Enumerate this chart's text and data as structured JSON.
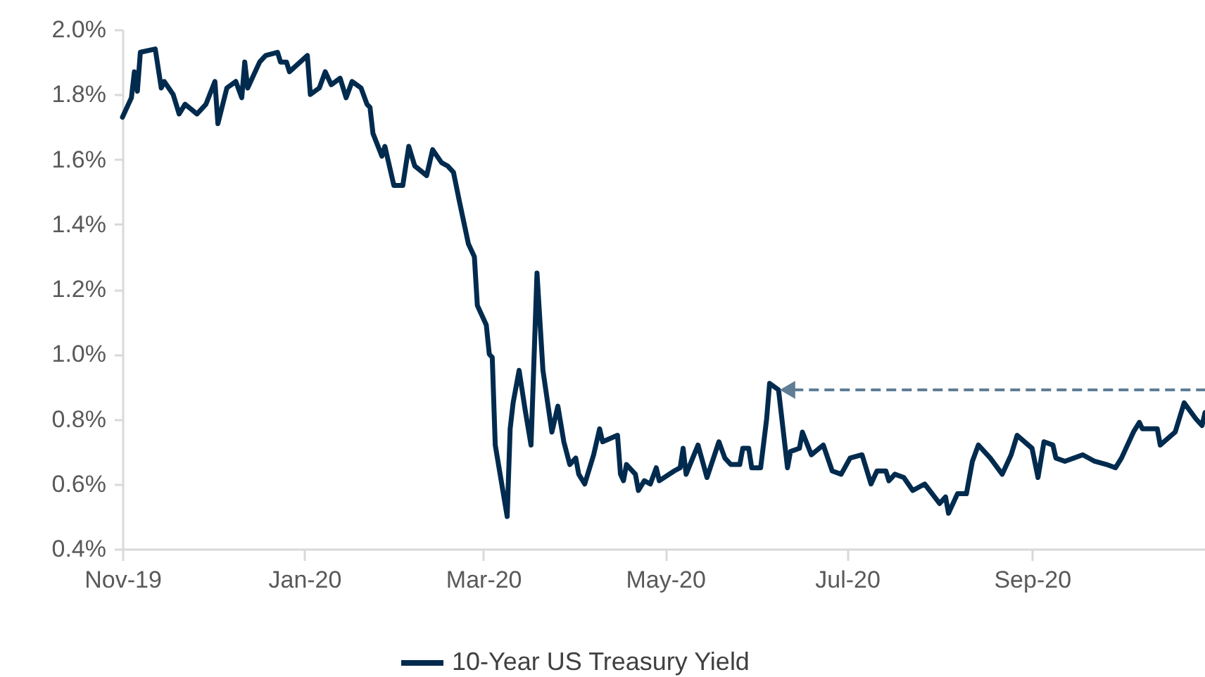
{
  "chart_data": {
    "type": "line",
    "x": [
      "2019-11-01",
      "2019-11-04",
      "2019-11-05",
      "2019-11-06",
      "2019-11-07",
      "2019-11-12",
      "2019-11-14",
      "2019-11-15",
      "2019-11-18",
      "2019-11-20",
      "2019-11-22",
      "2019-11-26",
      "2019-11-29",
      "2019-12-02",
      "2019-12-03",
      "2019-12-06",
      "2019-12-09",
      "2019-12-11",
      "2019-12-12",
      "2019-12-13",
      "2019-12-17",
      "2019-12-19",
      "2019-12-23",
      "2019-12-24",
      "2019-12-26",
      "2019-12-27",
      "2020-01-02",
      "2020-01-03",
      "2020-01-06",
      "2020-01-08",
      "2020-01-10",
      "2020-01-13",
      "2020-01-15",
      "2020-01-17",
      "2020-01-20",
      "2020-01-22",
      "2020-01-23",
      "2020-01-24",
      "2020-01-27",
      "2020-01-28",
      "2020-01-31",
      "2020-02-03",
      "2020-02-05",
      "2020-02-07",
      "2020-02-11",
      "2020-02-13",
      "2020-02-16",
      "2020-02-18",
      "2020-02-20",
      "2020-02-22",
      "2020-02-25",
      "2020-02-27",
      "2020-02-28",
      "2020-03-02",
      "2020-03-03",
      "2020-03-04",
      "2020-03-05",
      "2020-03-09",
      "2020-03-10",
      "2020-03-11",
      "2020-03-13",
      "2020-03-15",
      "2020-03-17",
      "2020-03-19",
      "2020-03-21",
      "2020-03-24",
      "2020-03-26",
      "2020-03-28",
      "2020-03-30",
      "2020-04-01",
      "2020-04-02",
      "2020-04-04",
      "2020-04-07",
      "2020-04-09",
      "2020-04-10",
      "2020-04-15",
      "2020-04-16",
      "2020-04-17",
      "2020-04-18",
      "2020-04-21",
      "2020-04-22",
      "2020-04-24",
      "2020-04-26",
      "2020-04-28",
      "2020-04-29",
      "2020-05-04",
      "2020-05-06",
      "2020-05-07",
      "2020-05-08",
      "2020-05-12",
      "2020-05-15",
      "2020-05-19",
      "2020-05-21",
      "2020-05-23",
      "2020-05-26",
      "2020-05-27",
      "2020-05-29",
      "2020-05-30",
      "2020-06-02",
      "2020-06-04",
      "2020-06-05",
      "2020-06-08",
      "2020-06-11",
      "2020-06-12",
      "2020-06-15",
      "2020-06-16",
      "2020-06-19",
      "2020-06-23",
      "2020-06-26",
      "2020-06-29",
      "2020-07-02",
      "2020-07-06",
      "2020-07-09",
      "2020-07-11",
      "2020-07-14",
      "2020-07-15",
      "2020-07-17",
      "2020-07-20",
      "2020-07-23",
      "2020-07-27",
      "2020-08-01",
      "2020-08-03",
      "2020-08-04",
      "2020-08-07",
      "2020-08-10",
      "2020-08-12",
      "2020-08-14",
      "2020-08-18",
      "2020-08-22",
      "2020-08-25",
      "2020-08-27",
      "2020-09-01",
      "2020-09-03",
      "2020-09-05",
      "2020-09-08",
      "2020-09-09",
      "2020-09-12",
      "2020-09-18",
      "2020-09-22",
      "2020-09-26",
      "2020-09-29",
      "2020-10-01",
      "2020-10-05",
      "2020-10-07",
      "2020-10-08",
      "2020-10-13",
      "2020-10-14",
      "2020-10-19",
      "2020-10-22",
      "2020-10-26",
      "2020-10-28",
      "2020-10-29"
    ],
    "series": [
      {
        "name": "10-Year US Treasury Yield",
        "color": "#002b4e",
        "values": [
          1.73,
          1.79,
          1.87,
          1.81,
          1.93,
          1.94,
          1.82,
          1.84,
          1.8,
          1.74,
          1.77,
          1.74,
          1.77,
          1.84,
          1.71,
          1.82,
          1.84,
          1.79,
          1.9,
          1.82,
          1.9,
          1.92,
          1.93,
          1.9,
          1.9,
          1.87,
          1.92,
          1.8,
          1.82,
          1.87,
          1.83,
          1.85,
          1.79,
          1.84,
          1.82,
          1.77,
          1.76,
          1.68,
          1.61,
          1.64,
          1.52,
          1.52,
          1.64,
          1.58,
          1.55,
          1.63,
          1.59,
          1.58,
          1.56,
          1.47,
          1.34,
          1.3,
          1.15,
          1.09,
          1.0,
          0.99,
          0.72,
          0.5,
          0.77,
          0.85,
          0.95,
          0.83,
          0.72,
          1.25,
          0.95,
          0.76,
          0.84,
          0.73,
          0.66,
          0.68,
          0.63,
          0.6,
          0.69,
          0.77,
          0.73,
          0.75,
          0.63,
          0.61,
          0.66,
          0.63,
          0.58,
          0.61,
          0.6,
          0.65,
          0.61,
          0.64,
          0.65,
          0.71,
          0.63,
          0.72,
          0.62,
          0.73,
          0.68,
          0.66,
          0.66,
          0.71,
          0.71,
          0.65,
          0.65,
          0.8,
          0.91,
          0.89,
          0.65,
          0.7,
          0.71,
          0.76,
          0.69,
          0.72,
          0.64,
          0.63,
          0.68,
          0.69,
          0.6,
          0.64,
          0.64,
          0.61,
          0.63,
          0.62,
          0.58,
          0.6,
          0.54,
          0.56,
          0.51,
          0.57,
          0.57,
          0.67,
          0.72,
          0.68,
          0.63,
          0.69,
          0.75,
          0.71,
          0.62,
          0.73,
          0.72,
          0.68,
          0.67,
          0.69,
          0.67,
          0.66,
          0.65,
          0.68,
          0.76,
          0.79,
          0.77,
          0.77,
          0.72,
          0.76,
          0.85,
          0.8,
          0.78,
          0.82
        ]
      }
    ],
    "xlim": [
      "2019-11-01",
      "2020-10-29"
    ],
    "xticks": [
      {
        "value": "2019-11-01",
        "label": "Nov-19"
      },
      {
        "value": "2020-01-01",
        "label": "Jan-20"
      },
      {
        "value": "2020-03-01",
        "label": "Mar-20"
      },
      {
        "value": "2020-05-01",
        "label": "May-20"
      },
      {
        "value": "2020-07-01",
        "label": "Jul-20"
      },
      {
        "value": "2020-09-01",
        "label": "Sep-20"
      }
    ],
    "ylim": [
      0.4,
      2.0
    ],
    "yticks": [
      {
        "value": 0.4,
        "label": "0.4%"
      },
      {
        "value": 0.6,
        "label": "0.6%"
      },
      {
        "value": 0.8,
        "label": "0.8%"
      },
      {
        "value": 1.0,
        "label": "1.0%"
      },
      {
        "value": 1.2,
        "label": "1.2%"
      },
      {
        "value": 1.4,
        "label": "1.4%"
      },
      {
        "value": 1.6,
        "label": "1.6%"
      },
      {
        "value": 1.8,
        "label": "1.8%"
      },
      {
        "value": 2.0,
        "label": "2.0%"
      }
    ],
    "ref_lines": [
      {
        "axis": "y",
        "value": 0.89,
        "color": "#5f7d95",
        "line_style": "dashed"
      }
    ],
    "grid": false,
    "legend": "bottom",
    "line_style": "solid"
  }
}
